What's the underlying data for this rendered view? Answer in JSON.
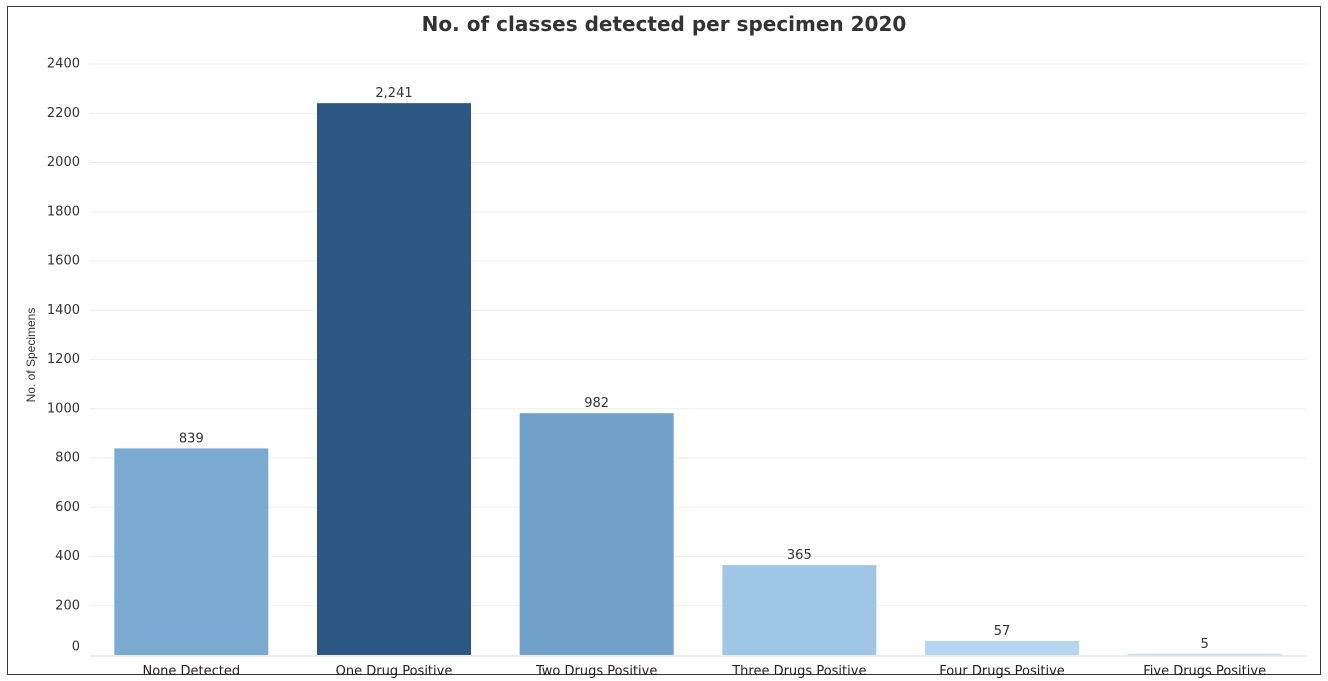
{
  "chart_data": {
    "type": "bar",
    "title": "No. of classes detected per specimen 2020",
    "xlabel": "",
    "ylabel": "No. of Specimens",
    "categories": [
      "None Detected",
      "One Drug Positive",
      "Two Drugs Positive",
      "Three Drugs Positive",
      "Four Drugs Positive",
      "Five Drugs Positive"
    ],
    "values": [
      839,
      2241,
      982,
      365,
      57,
      5
    ],
    "data_labels": [
      "839",
      "2,241",
      "982",
      "365",
      "57",
      "5"
    ],
    "colors": [
      "#7aaad0",
      "#2b5782",
      "#71a1c8",
      "#9fc6e4",
      "#b5d6ee",
      "#c6e0f3"
    ],
    "ylim": [
      0,
      2400
    ],
    "yticks": [
      0,
      200,
      400,
      600,
      800,
      1000,
      1200,
      1400,
      1600,
      1800,
      2000,
      2200,
      2400
    ],
    "grid": true,
    "legend": "none"
  }
}
